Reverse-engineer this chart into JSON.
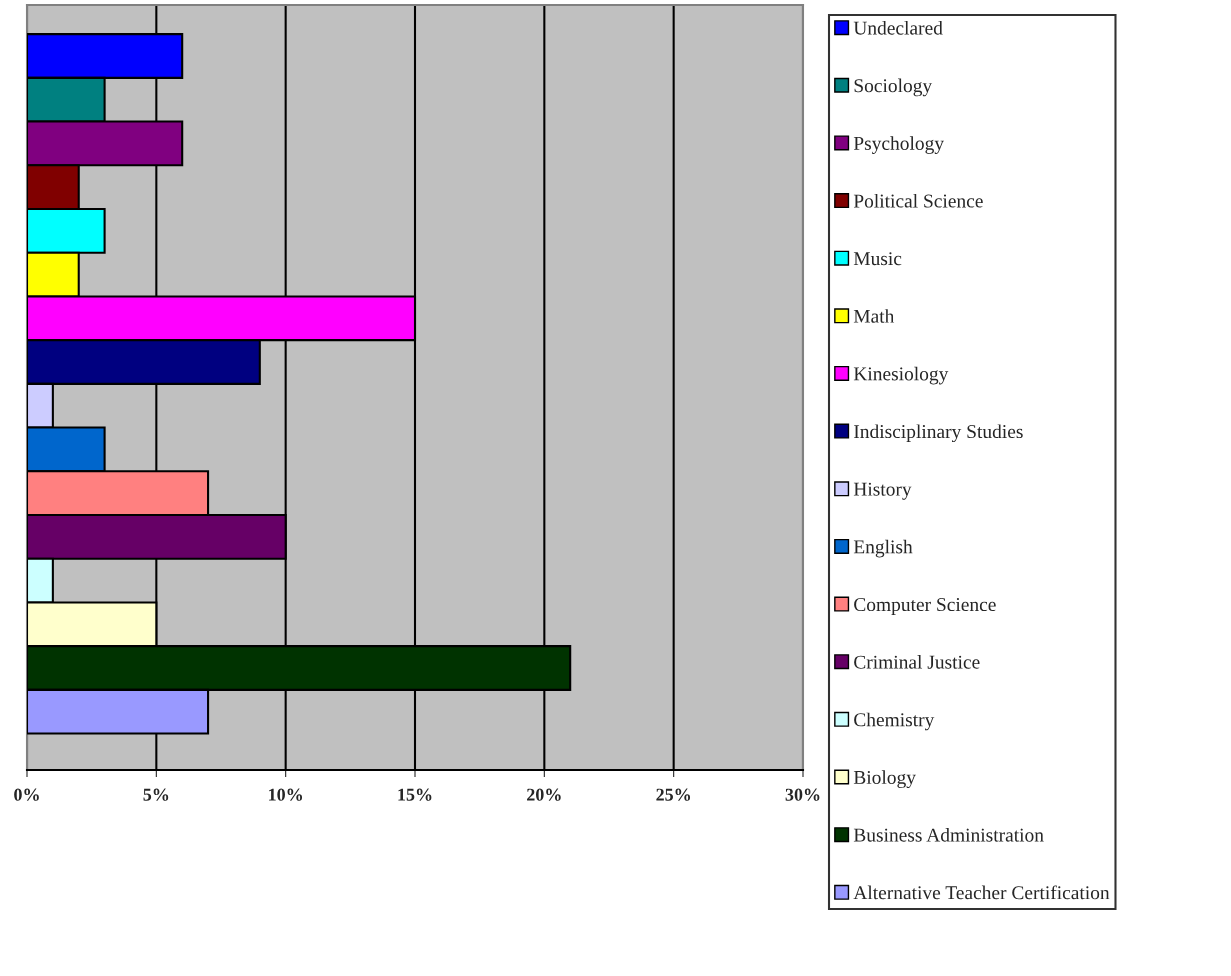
{
  "chart_data": {
    "type": "bar",
    "orientation": "horizontal",
    "categories": [
      null
    ],
    "series": [
      {
        "name": "Undeclared",
        "color": "#0000ff",
        "values": [
          6
        ]
      },
      {
        "name": "Sociology",
        "color": "#008080",
        "values": [
          3
        ]
      },
      {
        "name": "Psychology",
        "color": "#800080",
        "values": [
          6
        ]
      },
      {
        "name": "Political Science",
        "color": "#800000",
        "values": [
          2
        ]
      },
      {
        "name": "Music",
        "color": "#00ffff",
        "values": [
          3
        ]
      },
      {
        "name": "Math",
        "color": "#ffff00",
        "values": [
          2
        ]
      },
      {
        "name": "Kinesiology",
        "color": "#ff00ff",
        "values": [
          15
        ]
      },
      {
        "name": "Indisciplinary Studies",
        "color": "#000080",
        "values": [
          9
        ]
      },
      {
        "name": "History",
        "color": "#ccccff",
        "values": [
          1
        ]
      },
      {
        "name": "English",
        "color": "#0066cc",
        "values": [
          3
        ]
      },
      {
        "name": "Computer Science",
        "color": "#ff8080",
        "values": [
          7
        ]
      },
      {
        "name": "Criminal Justice",
        "color": "#660066",
        "values": [
          10
        ]
      },
      {
        "name": "Chemistry",
        "color": "#ccffff",
        "values": [
          1
        ]
      },
      {
        "name": "Biology",
        "color": "#ffffcc",
        "values": [
          5
        ]
      },
      {
        "name": "Business Administration",
        "color": "#003300",
        "values": [
          21
        ]
      },
      {
        "name": "Alternative Teacher Certification",
        "color": "#9999ff",
        "values": [
          7
        ]
      }
    ],
    "xlim": [
      0,
      30
    ],
    "xticks": [
      {
        "value": 0,
        "label": "0%"
      },
      {
        "value": 5,
        "label": "5%"
      },
      {
        "value": 10,
        "label": "10%"
      },
      {
        "value": 15,
        "label": "15%"
      },
      {
        "value": 20,
        "label": "20%"
      },
      {
        "value": 25,
        "label": "25%"
      },
      {
        "value": 30,
        "label": "30%"
      }
    ],
    "grid": "x",
    "legend": "right"
  }
}
